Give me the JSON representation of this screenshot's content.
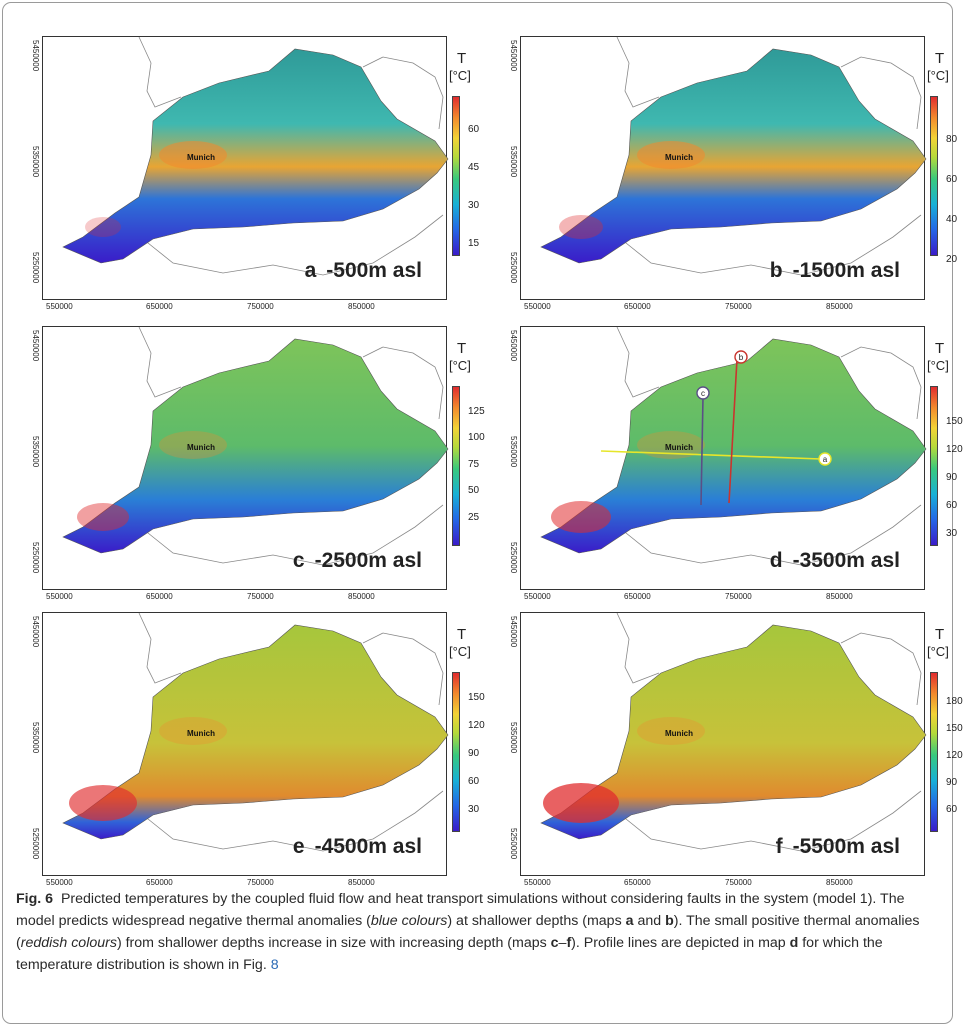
{
  "figure": {
    "panels": [
      {
        "letter": "a",
        "depth": "-500m asl",
        "unit_t": "T",
        "unit_c": "[°C]",
        "ticks": [
          "60",
          "45",
          "30",
          "15"
        ],
        "yticks": [
          "5450000",
          "5350000",
          "5250000"
        ],
        "xticks": [
          "550000",
          "650000",
          "750000",
          "850000"
        ],
        "city": "Munich"
      },
      {
        "letter": "b",
        "depth": "-1500m asl",
        "unit_t": "T",
        "unit_c": "[°C]",
        "ticks": [
          "80",
          "60",
          "40",
          "20"
        ],
        "yticks": [
          "5450000",
          "5350000",
          "5250000"
        ],
        "xticks": [
          "550000",
          "650000",
          "750000",
          "850000"
        ],
        "city": "Munich"
      },
      {
        "letter": "c",
        "depth": "-2500m asl",
        "unit_t": "T",
        "unit_c": "[°C]",
        "ticks": [
          "125",
          "100",
          "75",
          "50",
          "25"
        ],
        "yticks": [
          "5450000",
          "5350000",
          "5250000"
        ],
        "xticks": [
          "550000",
          "650000",
          "750000",
          "850000"
        ],
        "city": "Munich"
      },
      {
        "letter": "d",
        "depth": "-3500m asl",
        "unit_t": "T",
        "unit_c": "[°C]",
        "ticks": [
          "150",
          "120",
          "90",
          "60",
          "30"
        ],
        "yticks": [
          "5450000",
          "5350000",
          "5250000"
        ],
        "xticks": [
          "550000",
          "650000",
          "750000",
          "850000"
        ],
        "city": "Munich",
        "profiles": [
          "a",
          "b",
          "c"
        ]
      },
      {
        "letter": "e",
        "depth": "-4500m asl",
        "unit_t": "T",
        "unit_c": "[°C]",
        "ticks": [
          "150",
          "120",
          "90",
          "60",
          "30"
        ],
        "yticks": [
          "5450000",
          "5350000",
          "5250000"
        ],
        "xticks": [
          "550000",
          "650000",
          "750000",
          "850000"
        ],
        "city": "Munich"
      },
      {
        "letter": "f",
        "depth": "-5500m asl",
        "unit_t": "T",
        "unit_c": "[°C]",
        "ticks": [
          "180",
          "150",
          "120",
          "90",
          "60"
        ],
        "yticks": [
          "5450000",
          "5350000",
          "5250000"
        ],
        "xticks": [
          "550000",
          "650000",
          "750000",
          "850000"
        ],
        "city": "Munich"
      }
    ]
  },
  "caption": {
    "fig": "Fig. 6",
    "t1": "Predicted temperatures by the coupled fluid flow and heat transport simulations without considering faults in the system (model 1). The model predicts widespread negative thermal anomalies (",
    "i1": "blue colours",
    "t2": ") at shallower depths (maps ",
    "b1": "a",
    "t3": " and ",
    "b2": "b",
    "t4": "). The small positive thermal anomalies (",
    "i2": "reddish colours",
    "t5": ") from shallower depths increase in size with increasing depth (maps ",
    "b3": "c",
    "t6": "–",
    "b4": "f",
    "t7": "). Profile lines are depicted in map ",
    "b5": "d",
    "t8": " for which the temperature distribution is shown in Fig. ",
    "ref": "8"
  },
  "colors": {
    "cold": "#3a1cc9",
    "mid": "#38c97e",
    "warm": "#f3d336",
    "hot": "#e02c2e",
    "profile_a": "#e6e62a",
    "profile_b": "#c9352e",
    "profile_c": "#5a4f86"
  }
}
